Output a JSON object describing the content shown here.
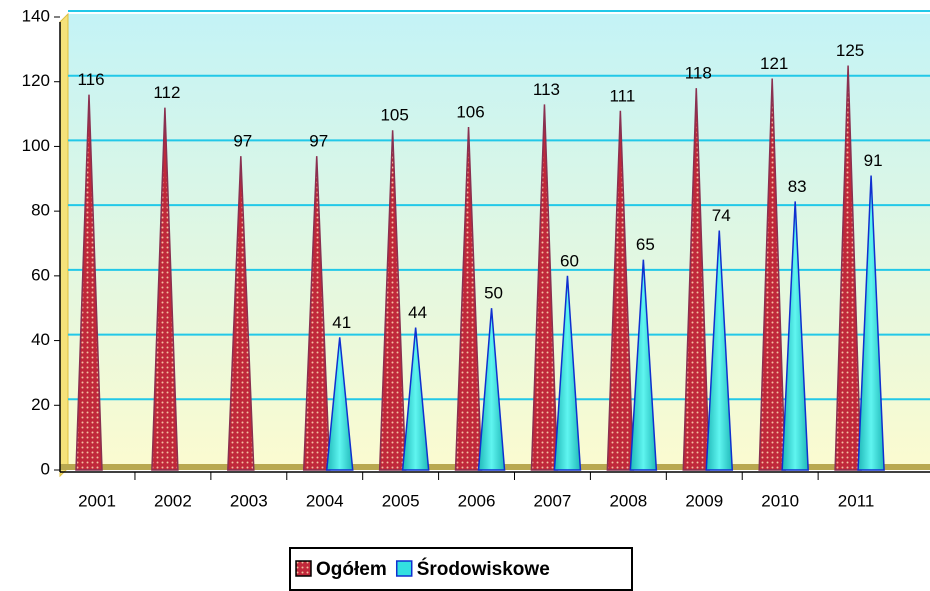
{
  "chart_data": {
    "type": "bar",
    "categories": [
      "2001",
      "2002",
      "2003",
      "2004",
      "2005",
      "2006",
      "2007",
      "2008",
      "2009",
      "2010",
      "2011"
    ],
    "series": [
      {
        "name": "Ogółem",
        "color": "#c0283a",
        "values": [
          116,
          112,
          97,
          97,
          105,
          106,
          113,
          111,
          118,
          121,
          125
        ]
      },
      {
        "name": "Środowiskowe",
        "color": "#33e0e0",
        "values": [
          null,
          null,
          null,
          41,
          44,
          50,
          60,
          65,
          74,
          83,
          91
        ]
      }
    ],
    "ylim": [
      0,
      140
    ],
    "yticks": [
      0,
      20,
      40,
      60,
      80,
      100,
      120,
      140
    ],
    "grid": true
  }
}
